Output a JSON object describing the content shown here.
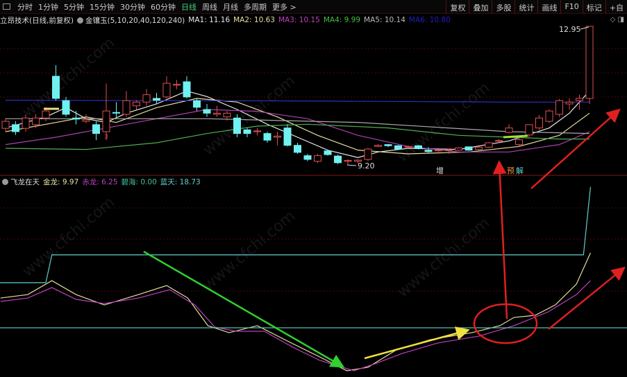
{
  "toolbar": {
    "timeframes": [
      "分时",
      "1分钟",
      "5分钟",
      "15分钟",
      "30分钟",
      "60分钟",
      "日线",
      "周线",
      "月线",
      "多周期",
      "更多 >"
    ],
    "active": "日线",
    "right_buttons": [
      "复权",
      "叠加",
      "多股",
      "统计",
      "画线",
      "F10",
      "标记",
      "+自"
    ]
  },
  "main_info": {
    "title": "立昂技术(日线,前复权)",
    "indicator": "金镶玉(5,10,20,40,120,240)",
    "ma": [
      {
        "label": "MA1: 11.16",
        "color": "#e8e8e8"
      },
      {
        "label": "MA2: 10.63",
        "color": "#e8e0a0"
      },
      {
        "label": "MA3: 10.15",
        "color": "#c040c0"
      },
      {
        "label": "MA4: 9.99",
        "color": "#40c040"
      },
      {
        "label": "MA5: 10.14",
        "color": "#bbbbbb"
      },
      {
        "label": "MA6: 10.80",
        "color": "#2020c0"
      }
    ]
  },
  "sub_info": {
    "title": "飞龙在天",
    "items": [
      {
        "label": "金龙: 9.97",
        "color": "#e8e0a0"
      },
      {
        "label": "赤龙: 6.25",
        "color": "#c040c0"
      },
      {
        "label": "碧海: 0.00",
        "color": "#40c0a0"
      },
      {
        "label": "蓝天: 18.73",
        "color": "#60d0d0"
      }
    ]
  },
  "annotations": {
    "high": "12.95",
    "low": "9.20",
    "zeng": "增",
    "yu": "预",
    "jie": "解",
    "marker": "3"
  },
  "watermark": "www.cfchi.com",
  "colors": {
    "up": "#e05050",
    "down": "#70f0f0",
    "bg": "#000000",
    "grid": "#5a1010"
  },
  "chart_data": {
    "type": "candlestick",
    "price_range": [
      9.2,
      12.95
    ],
    "candles_ochl": [
      [
        10.19,
        10.38,
        10.47,
        10.1
      ],
      [
        10.29,
        10.1,
        10.38,
        10.01
      ],
      [
        10.19,
        10.47,
        10.57,
        10.1
      ],
      [
        10.29,
        10.47,
        10.57,
        10.2
      ],
      [
        10.47,
        10.66,
        10.76,
        10.38
      ],
      [
        11.6,
        11.0,
        11.9,
        10.94
      ],
      [
        10.94,
        10.57,
        11.04,
        10.5
      ],
      [
        10.47,
        10.44,
        10.66,
        10.3
      ],
      [
        10.38,
        10.42,
        10.57,
        10.33
      ],
      [
        10.29,
        10.05,
        10.38,
        9.87
      ],
      [
        10.1,
        10.66,
        11.4,
        9.87
      ],
      [
        10.62,
        10.6,
        10.9,
        10.47
      ],
      [
        10.57,
        10.94,
        11.2,
        10.5
      ],
      [
        10.8,
        10.9,
        10.95,
        10.7
      ],
      [
        10.9,
        11.1,
        11.25,
        10.8
      ],
      [
        11.0,
        10.95,
        11.15,
        10.85
      ],
      [
        11.04,
        11.41,
        11.6,
        11.0
      ],
      [
        11.36,
        11.38,
        11.5,
        11.25
      ],
      [
        11.45,
        11.04,
        11.6,
        11.0
      ],
      [
        10.94,
        10.76,
        11.0,
        10.66
      ],
      [
        10.7,
        10.6,
        10.85,
        10.5
      ],
      [
        10.57,
        10.6,
        10.8,
        10.5
      ],
      [
        10.5,
        10.6,
        10.66,
        10.4
      ],
      [
        10.47,
        10.05,
        10.57,
        9.95
      ],
      [
        10.15,
        10.05,
        10.2,
        9.95
      ],
      [
        10.1,
        10.12,
        10.2,
        10.0
      ],
      [
        10.05,
        9.87,
        10.1,
        9.8
      ],
      [
        9.95,
        9.98,
        10.1,
        9.73
      ],
      [
        10.2,
        9.73,
        10.3,
        9.7
      ],
      [
        9.73,
        9.54,
        9.8,
        9.5
      ],
      [
        9.45,
        9.35,
        9.5,
        9.3
      ],
      [
        9.3,
        9.45,
        9.5,
        9.25
      ],
      [
        9.58,
        9.48,
        9.6,
        9.45
      ],
      [
        9.44,
        9.26,
        9.48,
        9.22
      ],
      [
        9.3,
        9.32,
        9.35,
        9.2
      ],
      [
        9.3,
        9.33,
        9.36,
        9.25
      ],
      [
        9.35,
        9.63,
        9.66,
        9.3
      ],
      [
        9.7,
        9.73,
        9.76,
        9.68
      ],
      [
        9.75,
        9.72,
        9.77,
        9.68
      ],
      [
        9.72,
        9.63,
        9.74,
        9.6
      ],
      [
        9.68,
        9.7,
        9.73,
        9.65
      ],
      [
        9.72,
        9.64,
        9.74,
        9.62
      ],
      [
        9.6,
        9.56,
        9.68,
        9.53
      ],
      [
        9.58,
        9.6,
        9.63,
        9.55
      ],
      [
        9.6,
        9.61,
        9.64,
        9.5
      ],
      [
        9.6,
        9.66,
        9.68,
        9.58
      ],
      [
        9.69,
        9.6,
        9.7,
        9.58
      ],
      [
        9.62,
        9.68,
        9.7,
        9.6
      ],
      [
        9.68,
        9.8,
        9.82,
        9.66
      ],
      [
        9.85,
        9.86,
        9.9,
        9.8
      ],
      [
        10.08,
        10.2,
        10.3,
        10.05
      ],
      [
        9.75,
        9.88,
        9.95,
        9.7
      ],
      [
        10.01,
        10.29,
        10.3,
        9.95
      ],
      [
        10.2,
        10.47,
        10.55,
        10.15
      ],
      [
        10.38,
        10.66,
        10.7,
        10.33
      ],
      [
        10.57,
        10.94,
        10.98,
        10.5
      ],
      [
        10.85,
        10.9,
        11.0,
        10.7
      ],
      [
        10.94,
        11.0,
        11.1,
        10.7
      ],
      [
        11.0,
        12.95,
        12.95,
        10.85
      ]
    ],
    "ma_lines": [
      {
        "name": "MA1",
        "color": "#e8e8e8",
        "points": [
          [
            0,
            10.2
          ],
          [
            4,
            10.5
          ],
          [
            6,
            10.75
          ],
          [
            8,
            10.45
          ],
          [
            10,
            10.35
          ],
          [
            12,
            10.6
          ],
          [
            15,
            10.85
          ],
          [
            18,
            11.2
          ],
          [
            20,
            11.05
          ],
          [
            23,
            10.7
          ],
          [
            26,
            10.3
          ],
          [
            29,
            9.95
          ],
          [
            32,
            9.6
          ],
          [
            35,
            9.4
          ],
          [
            37,
            9.55
          ],
          [
            40,
            9.65
          ],
          [
            45,
            9.62
          ],
          [
            50,
            9.85
          ],
          [
            54,
            10.2
          ],
          [
            56,
            10.6
          ],
          [
            58,
            11.2
          ]
        ]
      },
      {
        "name": "MA2",
        "color": "#e8e0a0",
        "points": [
          [
            0,
            10.1
          ],
          [
            5,
            10.35
          ],
          [
            8,
            10.5
          ],
          [
            11,
            10.35
          ],
          [
            15,
            10.75
          ],
          [
            19,
            11.0
          ],
          [
            23,
            10.9
          ],
          [
            27,
            10.5
          ],
          [
            31,
            10.0
          ],
          [
            35,
            9.6
          ],
          [
            40,
            9.5
          ],
          [
            46,
            9.55
          ],
          [
            51,
            9.7
          ],
          [
            55,
            10.0
          ],
          [
            58,
            10.6
          ]
        ]
      },
      {
        "name": "MA3",
        "color": "#b040b0",
        "points": [
          [
            0,
            9.75
          ],
          [
            5,
            9.95
          ],
          [
            10,
            10.2
          ],
          [
            15,
            10.45
          ],
          [
            20,
            10.7
          ],
          [
            25,
            10.65
          ],
          [
            30,
            10.45
          ],
          [
            35,
            10.0
          ],
          [
            40,
            9.7
          ],
          [
            45,
            9.55
          ],
          [
            50,
            9.55
          ],
          [
            55,
            9.75
          ],
          [
            58,
            10.1
          ]
        ]
      },
      {
        "name": "MA4",
        "color": "#50b050",
        "points": [
          [
            0,
            9.65
          ],
          [
            8,
            9.62
          ],
          [
            15,
            9.8
          ],
          [
            20,
            10.05
          ],
          [
            25,
            10.25
          ],
          [
            30,
            10.3
          ],
          [
            38,
            10.2
          ],
          [
            45,
            10.0
          ],
          [
            50,
            9.95
          ],
          [
            55,
            9.9
          ],
          [
            58,
            9.9
          ]
        ]
      },
      {
        "name": "MA5",
        "color": "#aaaaaa",
        "points": [
          [
            0,
            10.45
          ],
          [
            20,
            10.45
          ],
          [
            35,
            10.35
          ],
          [
            50,
            10.1
          ],
          [
            58,
            10.05
          ]
        ]
      },
      {
        "name": "MA6",
        "color": "#3030c0",
        "points": [
          [
            0,
            10.95
          ],
          [
            30,
            10.93
          ],
          [
            50,
            10.9
          ],
          [
            58,
            10.9
          ]
        ]
      }
    ],
    "sub_lines": [
      {
        "name": "金龙",
        "color": "#e8e0a0",
        "points": [
          [
            -0.5,
            3.96
          ],
          [
            2.2,
            4.42
          ],
          [
            4.6,
            6.27
          ],
          [
            7,
            4.42
          ],
          [
            9.8,
            3.04
          ],
          [
            13.2,
            4.42
          ],
          [
            16,
            5.62
          ],
          [
            18.1,
            3.96
          ],
          [
            20.1,
            0.28
          ],
          [
            22.2,
            -0.65
          ],
          [
            25,
            0.28
          ],
          [
            28.4,
            -2.03
          ],
          [
            31.2,
            -3.87
          ],
          [
            33.9,
            -5.71
          ],
          [
            36,
            -5.25
          ],
          [
            38.8,
            -2.95
          ],
          [
            42.2,
            -1.57
          ],
          [
            46.3,
            -0.65
          ],
          [
            49.1,
            0.28
          ],
          [
            50.5,
            1.38
          ],
          [
            52.6,
            1.66
          ],
          [
            54.6,
            3.04
          ],
          [
            56.7,
            5.81
          ],
          [
            58.1,
            9.97
          ]
        ]
      },
      {
        "name": "赤龙",
        "color": "#c040c0",
        "points": [
          [
            -0.5,
            3.5
          ],
          [
            2.2,
            3.96
          ],
          [
            4.6,
            5.35
          ],
          [
            7,
            3.78
          ],
          [
            9.8,
            3.23
          ],
          [
            13.2,
            3.96
          ],
          [
            16.3,
            5.07
          ],
          [
            18.8,
            3.04
          ],
          [
            20.8,
            0.09
          ],
          [
            22.9,
            -0.46
          ],
          [
            25.7,
            -0.46
          ],
          [
            28.4,
            -2.49
          ],
          [
            31.2,
            -4.33
          ],
          [
            34.6,
            -5.71
          ],
          [
            36.7,
            -4.79
          ],
          [
            39.4,
            -3.41
          ],
          [
            42.9,
            -2.03
          ],
          [
            47,
            -1.11
          ],
          [
            50.5,
            0.28
          ],
          [
            53.9,
            2.12
          ],
          [
            56.7,
            4.42
          ],
          [
            58.1,
            6.27
          ]
        ]
      },
      {
        "name": "碧海",
        "color": "#50c0b0",
        "points": [
          [
            -0.6,
            0
          ],
          [
            62,
            0
          ]
        ]
      },
      {
        "name": "蓝天",
        "color": "#60d0d0",
        "points": [
          [
            -0.6,
            6.0
          ],
          [
            4.0,
            6.0
          ],
          [
            4.6,
            9.7
          ],
          [
            57.4,
            9.7
          ],
          [
            58.1,
            18.73
          ]
        ]
      }
    ]
  }
}
